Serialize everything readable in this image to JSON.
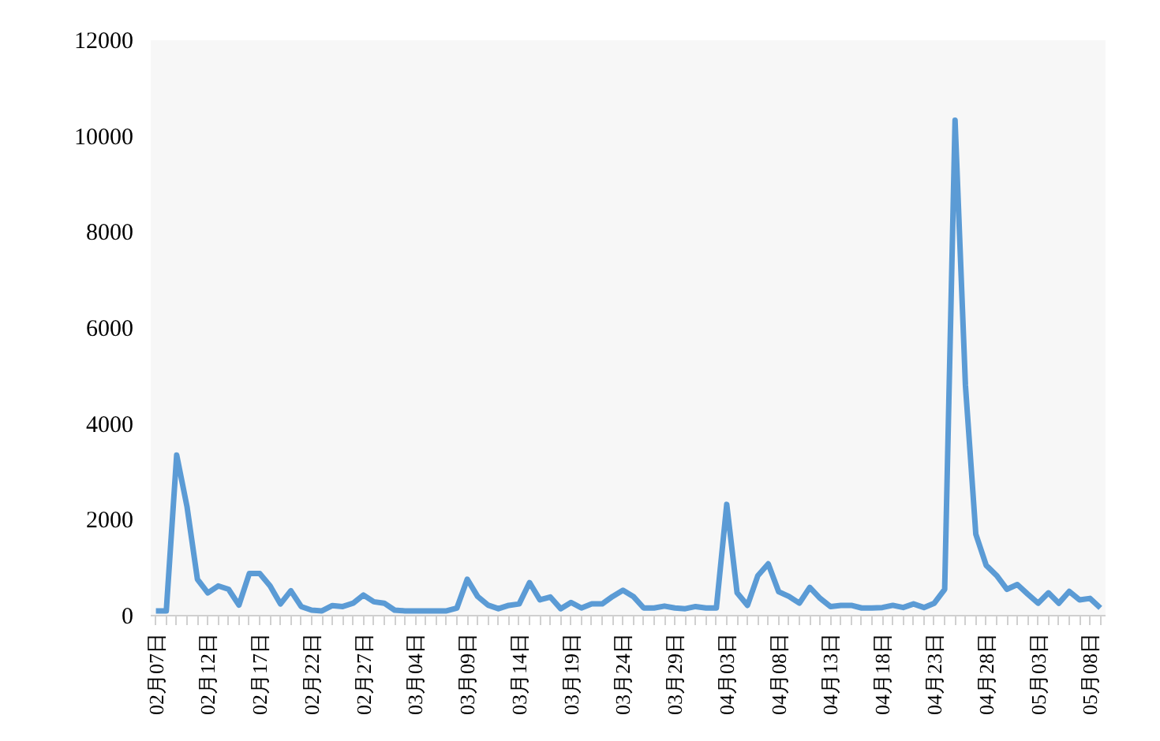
{
  "chart_data": {
    "type": "line",
    "categories": [
      "02月07日",
      null,
      null,
      null,
      null,
      "02月12日",
      null,
      null,
      null,
      null,
      "02月17日",
      null,
      null,
      null,
      null,
      "02月22日",
      null,
      null,
      null,
      null,
      "02月27日",
      null,
      null,
      null,
      null,
      "03月04日",
      null,
      null,
      null,
      null,
      "03月09日",
      null,
      null,
      null,
      null,
      "03月14日",
      null,
      null,
      null,
      null,
      "03月19日",
      null,
      null,
      null,
      null,
      "03月24日",
      null,
      null,
      null,
      null,
      "03月29日",
      null,
      null,
      null,
      null,
      "04月03日",
      null,
      null,
      null,
      null,
      "04月08日",
      null,
      null,
      null,
      null,
      "04月13日",
      null,
      null,
      null,
      null,
      "04月18日",
      null,
      null,
      null,
      null,
      "04月23日",
      null,
      null,
      null,
      null,
      "04月28日",
      null,
      null,
      null,
      null,
      "05月03日",
      null,
      null,
      null,
      null,
      "05月08日",
      null
    ],
    "series": [
      {
        "color": "#5b9bd5",
        "values": [
          100,
          100,
          3350,
          2270,
          760,
          475,
          620,
          550,
          220,
          880,
          880,
          620,
          245,
          520,
          190,
          115,
          100,
          210,
          190,
          260,
          430,
          290,
          260,
          115,
          100,
          100,
          100,
          100,
          100,
          160,
          760,
          400,
          220,
          145,
          215,
          245,
          690,
          330,
          390,
          145,
          275,
          160,
          245,
          245,
          400,
          530,
          400,
          160,
          160,
          200,
          160,
          145,
          190,
          160,
          160,
          2320,
          475,
          215,
          835,
          1080,
          500,
          400,
          260,
          590,
          360,
          190,
          215,
          215,
          160,
          160,
          170,
          215,
          170,
          245,
          170,
          260,
          550,
          10330,
          4800,
          1700,
          1050,
          840,
          550,
          650,
          450,
          260,
          475,
          260,
          505,
          330,
          360,
          160
        ]
      }
    ],
    "ylim": [
      0,
      12000
    ],
    "yticks": [
      0,
      2000,
      4000,
      6000,
      8000,
      10000,
      12000
    ],
    "grid": false,
    "marker": "none",
    "line_style": "solid"
  }
}
